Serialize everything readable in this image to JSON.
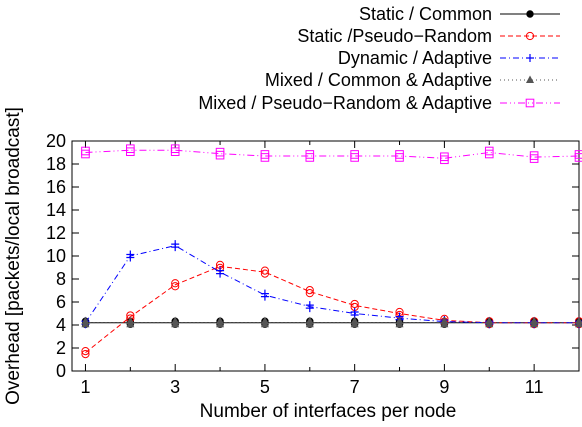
{
  "chart_data": {
    "type": "line",
    "xlabel": "Number of interfaces per node",
    "ylabel": "Overhead [packets/local broadcast]",
    "xlim": [
      0.7,
      12
    ],
    "ylim": [
      0,
      20
    ],
    "x_ticks": [
      1,
      3,
      5,
      7,
      9,
      11
    ],
    "y_ticks": [
      0,
      2,
      4,
      6,
      8,
      10,
      12,
      14,
      16,
      18,
      20
    ],
    "grid": false,
    "legend_position": "top-right, above plot",
    "x": [
      1,
      2,
      3,
      4,
      5,
      6,
      7,
      8,
      9,
      10,
      11,
      12
    ],
    "series": [
      {
        "name": "Static / Common",
        "color": "#000000",
        "marker": "filled-circle",
        "dash": "solid",
        "values": [
          4.2,
          4.2,
          4.2,
          4.2,
          4.2,
          4.2,
          4.2,
          4.2,
          4.2,
          4.2,
          4.2,
          4.2
        ]
      },
      {
        "name": "Static /Pseudo−Random",
        "color": "#ff0000",
        "marker": "open-circle",
        "dash": "dashed",
        "values": [
          1.6,
          4.7,
          7.5,
          9.1,
          8.6,
          6.9,
          5.7,
          5.0,
          4.4,
          4.2,
          4.2,
          4.2
        ]
      },
      {
        "name": "Dynamic / Adaptive",
        "color": "#0000ff",
        "marker": "plus",
        "dash": "dashdot",
        "values": [
          4.2,
          10.0,
          10.9,
          8.6,
          6.6,
          5.6,
          5.0,
          4.6,
          4.3,
          4.2,
          4.2,
          4.2
        ]
      },
      {
        "name": "Mixed / Common & Adaptive",
        "color": "#555555",
        "marker": "triangle",
        "dash": "dotted",
        "values": [
          4.2,
          4.2,
          4.2,
          4.2,
          4.2,
          4.2,
          4.2,
          4.2,
          4.2,
          4.2,
          4.2,
          4.2
        ]
      },
      {
        "name": "Mixed / Pseudo−Random & Adaptive",
        "color": "#ff00ff",
        "marker": "open-square",
        "dash": "dashdotdot",
        "values": [
          19.0,
          19.2,
          19.2,
          18.9,
          18.7,
          18.7,
          18.7,
          18.7,
          18.5,
          19.0,
          18.6,
          18.7
        ]
      }
    ]
  }
}
